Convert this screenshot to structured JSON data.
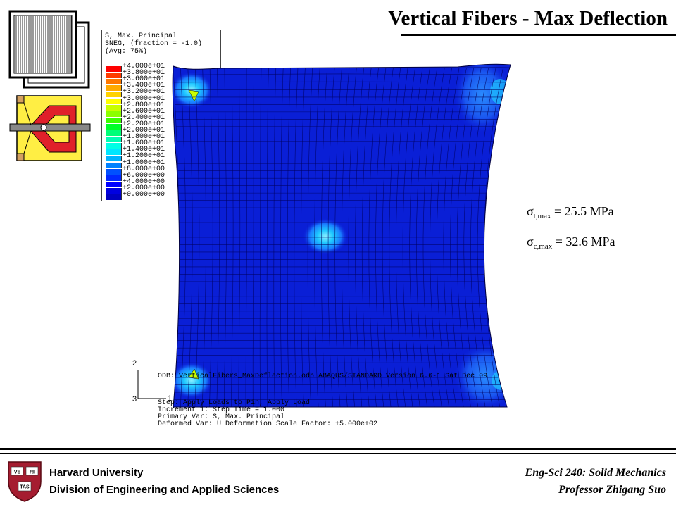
{
  "slide": {
    "title": "Vertical Fibers -  Max Deflection"
  },
  "legend": {
    "header_lines": [
      "S, Max. Principal",
      "SNEG, (fraction = -1.0)",
      "(Avg: 75%)"
    ],
    "entries": [
      {
        "value": "+4.000e+01",
        "color": "#ff0000"
      },
      {
        "value": "+3.800e+01",
        "color": "#ff3c00"
      },
      {
        "value": "+3.600e+01",
        "color": "#ff7800"
      },
      {
        "value": "+3.400e+01",
        "color": "#ffaa00"
      },
      {
        "value": "+3.200e+01",
        "color": "#ffd200"
      },
      {
        "value": "+3.000e+01",
        "color": "#ffff00"
      },
      {
        "value": "+2.800e+01",
        "color": "#c8ff00"
      },
      {
        "value": "+2.600e+01",
        "color": "#8cff00"
      },
      {
        "value": "+2.400e+01",
        "color": "#3cff00"
      },
      {
        "value": "+2.200e+01",
        "color": "#00ff28"
      },
      {
        "value": "+2.000e+01",
        "color": "#00ff78"
      },
      {
        "value": "+1.800e+01",
        "color": "#00ffb4"
      },
      {
        "value": "+1.600e+01",
        "color": "#00ffe6"
      },
      {
        "value": "+1.400e+01",
        "color": "#00e6ff"
      },
      {
        "value": "+1.200e+01",
        "color": "#00b4ff"
      },
      {
        "value": "+1.000e+01",
        "color": "#0082ff"
      },
      {
        "value": "+8.000e+00",
        "color": "#0050ff"
      },
      {
        "value": "+6.000e+00",
        "color": "#0028ff"
      },
      {
        "value": "+4.000e+00",
        "color": "#0000ff"
      },
      {
        "value": "+2.000e+00",
        "color": "#0000e0"
      },
      {
        "value": "+0.000e+00",
        "color": "#0000c0"
      }
    ]
  },
  "results": {
    "tension": {
      "symbol": "σ",
      "sub": "t,max",
      "value": " = 25.5 MPa"
    },
    "compression": {
      "symbol": "σ",
      "sub": "c,max",
      "value": " = 32.6 MPa"
    }
  },
  "odb_info": {
    "lines": [
      "ODB: VerticalFibers_MaxDeflection.odb    ABAQUS/STANDARD Version 6.6-1    Sat Dec 09",
      "Step: Apply Loads to Pin, Apply Load",
      "Increment      1: Step Time =    1.000",
      "Primary Var: S, Max. Principal",
      "Deformed Var: U   Deformation Scale Factor: +5.000e+02"
    ],
    "axis_labels": [
      "2",
      "3",
      "1"
    ]
  },
  "footer": {
    "left_line1": "Harvard University",
    "left_line2": "Division of Engineering and Applied Sciences",
    "right_line1": "Eng-Sci 240: Solid Mechanics",
    "right_line2": "Professor Zhigang Suo",
    "shield_text": [
      "VE",
      "RI",
      "TAS"
    ]
  },
  "colors": {
    "mesh_blue": "#0a1fd6",
    "mesh_line": "#000060",
    "shield_red": "#a51c30",
    "hot_cyan": "#1ec8ff",
    "diagram_yellow": "#ffee44",
    "diagram_red": "#e0202a"
  }
}
